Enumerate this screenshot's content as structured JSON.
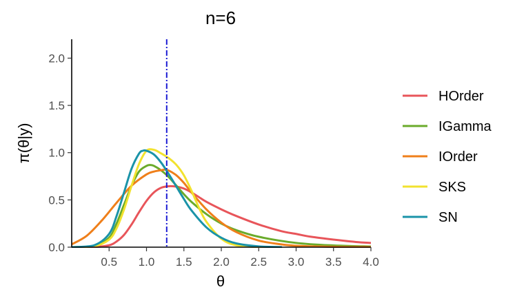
{
  "chart_data": {
    "type": "line",
    "title": "n=6",
    "xlabel": "θ",
    "ylabel": "π(θ|y)",
    "xlim": [
      0.0,
      4.0
    ],
    "ylim": [
      0.0,
      2.2
    ],
    "xticks": [
      0.5,
      1.0,
      1.5,
      2.0,
      2.5,
      3.0,
      3.5,
      4.0
    ],
    "xtick_labels": [
      "0.5",
      "1.0",
      "1.5",
      "2.0",
      "2.5",
      "3.0",
      "3.5",
      "4.0"
    ],
    "yticks": [
      0.0,
      0.5,
      1.0,
      1.5,
      2.0
    ],
    "ytick_labels": [
      "0.0",
      "0.5",
      "1.0",
      "1.5",
      "2.0"
    ],
    "grid": false,
    "legend_placement": "right",
    "reference_line": {
      "x": 1.27,
      "color": "#1a1ad4",
      "style": "dash-dot"
    },
    "series": [
      {
        "name": "HOrder",
        "color": "#e8555a",
        "x": [
          0,
          0.3,
          0.5,
          0.6,
          0.7,
          0.8,
          0.9,
          1.0,
          1.1,
          1.2,
          1.3,
          1.4,
          1.5,
          1.6,
          1.7,
          1.8,
          2.0,
          2.2,
          2.5,
          2.8,
          3.0,
          3.2,
          3.5,
          3.8,
          4.0
        ],
        "y": [
          0,
          0.002,
          0.02,
          0.06,
          0.13,
          0.24,
          0.37,
          0.49,
          0.58,
          0.63,
          0.645,
          0.64,
          0.62,
          0.58,
          0.53,
          0.48,
          0.4,
          0.33,
          0.24,
          0.17,
          0.14,
          0.11,
          0.08,
          0.055,
          0.045
        ]
      },
      {
        "name": "IGamma",
        "color": "#6aab2b",
        "x": [
          0,
          0.3,
          0.5,
          0.6,
          0.7,
          0.8,
          0.9,
          1.0,
          1.05,
          1.1,
          1.2,
          1.3,
          1.4,
          1.5,
          1.6,
          1.8,
          2.0,
          2.2,
          2.5,
          3.0,
          3.5,
          4.0
        ],
        "y": [
          0,
          0.01,
          0.1,
          0.25,
          0.45,
          0.65,
          0.8,
          0.86,
          0.87,
          0.86,
          0.81,
          0.74,
          0.65,
          0.56,
          0.48,
          0.35,
          0.25,
          0.18,
          0.11,
          0.045,
          0.018,
          0.007
        ]
      },
      {
        "name": "IOrder",
        "color": "#ef7f1a",
        "x": [
          0,
          0.2,
          0.4,
          0.6,
          0.8,
          1.0,
          1.1,
          1.2,
          1.25,
          1.3,
          1.4,
          1.5,
          1.6,
          1.8,
          2.0,
          2.2,
          2.5,
          2.8,
          3.0,
          3.5,
          4.0
        ],
        "y": [
          0.03,
          0.12,
          0.28,
          0.47,
          0.65,
          0.77,
          0.8,
          0.815,
          0.82,
          0.81,
          0.76,
          0.68,
          0.58,
          0.4,
          0.26,
          0.16,
          0.07,
          0.03,
          0.015,
          0.004,
          0.001
        ]
      },
      {
        "name": "SKS",
        "color": "#f2e22e",
        "x": [
          0,
          0.3,
          0.5,
          0.6,
          0.7,
          0.8,
          0.9,
          1.0,
          1.1,
          1.2,
          1.3,
          1.4,
          1.5,
          1.6,
          1.7,
          1.8,
          2.0,
          2.2,
          2.5,
          2.8
        ],
        "y": [
          0,
          0.01,
          0.08,
          0.2,
          0.4,
          0.65,
          0.88,
          1.02,
          1.03,
          0.99,
          0.94,
          0.87,
          0.76,
          0.6,
          0.42,
          0.27,
          0.09,
          0.02,
          0.002,
          0
        ]
      },
      {
        "name": "SN",
        "color": "#1a93a8",
        "x": [
          0,
          0.3,
          0.5,
          0.6,
          0.7,
          0.8,
          0.9,
          0.95,
          1.0,
          1.1,
          1.2,
          1.3,
          1.4,
          1.5,
          1.6,
          1.8,
          2.0,
          2.2,
          2.5,
          2.8
        ],
        "y": [
          0,
          0.02,
          0.14,
          0.33,
          0.58,
          0.83,
          0.99,
          1.02,
          1.02,
          0.98,
          0.89,
          0.77,
          0.64,
          0.51,
          0.39,
          0.21,
          0.1,
          0.04,
          0.008,
          0.001
        ]
      }
    ]
  }
}
